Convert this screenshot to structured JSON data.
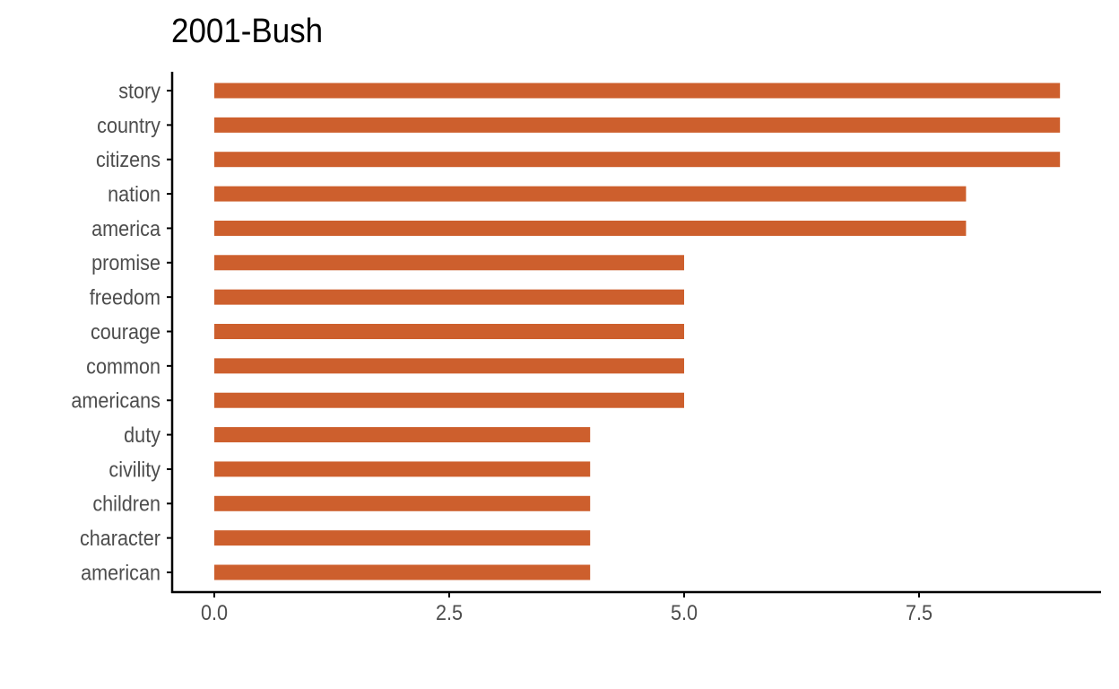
{
  "chart_data": {
    "type": "bar",
    "orientation": "horizontal",
    "title": "2001-Bush",
    "xlabel": "",
    "ylabel": "",
    "categories": [
      "story",
      "country",
      "citizens",
      "nation",
      "america",
      "promise",
      "freedom",
      "courage",
      "common",
      "americans",
      "duty",
      "civility",
      "children",
      "character",
      "american"
    ],
    "values": [
      9,
      9,
      9,
      8,
      8,
      5,
      5,
      5,
      5,
      5,
      4,
      4,
      4,
      4,
      4
    ],
    "xlim": [
      -0.45,
      9.45
    ],
    "xticks": [
      0,
      2.5,
      5,
      7.5
    ],
    "xtick_labels": [
      "0.0",
      "2.5",
      "5.0",
      "7.5"
    ],
    "grid": false,
    "legend": "none",
    "colors": {
      "bar": "#CD5F2D",
      "axis": "#000000",
      "tick_text": "#4d4d4d"
    }
  }
}
